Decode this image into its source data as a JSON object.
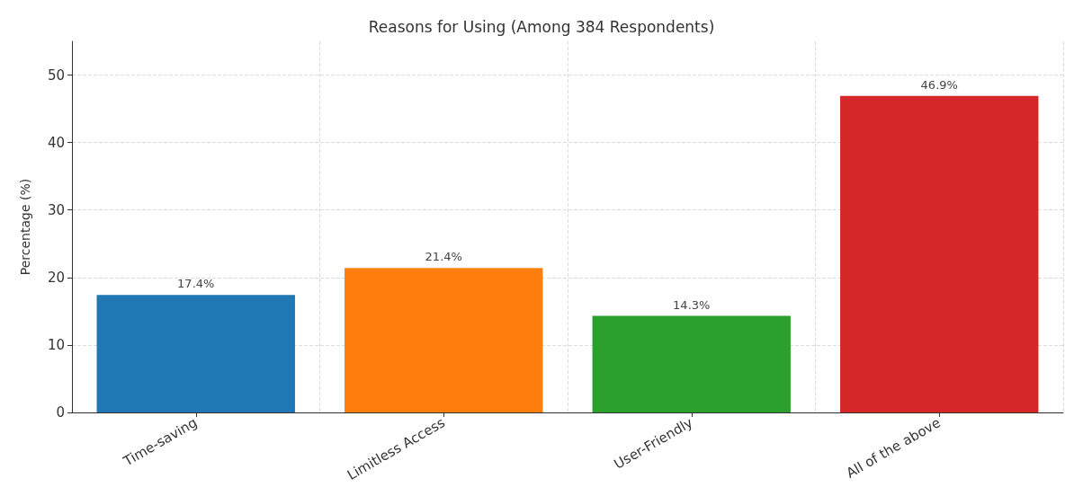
{
  "chart_data": {
    "type": "bar",
    "title": "Reasons for Using (Among 384 Respondents)",
    "ylabel": "Percentage (%)",
    "categories": [
      "Time-saving",
      "Limitless Access",
      "User-Friendly",
      "All of the above"
    ],
    "values": [
      17.4,
      21.4,
      14.3,
      46.9
    ],
    "colors": [
      "#1f77b4",
      "#ff7f0e",
      "#2ca02c",
      "#d62728"
    ],
    "value_labels": [
      "17.4%",
      "21.4%",
      "14.3%",
      "46.9%"
    ],
    "ylim": [
      0,
      55
    ],
    "yticks": [
      0,
      10,
      20,
      30,
      40,
      50
    ],
    "grid": true
  }
}
